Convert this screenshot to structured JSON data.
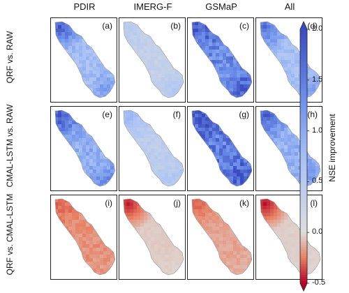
{
  "chart_data": {
    "type": "heatmap",
    "columns": [
      "PDIR",
      "IMERG-F",
      "GSMaP",
      "All"
    ],
    "rows": [
      "QRF vs. RAW",
      "CMAL-LSTM vs. RAW",
      "QRF vs. CMAL-LSTM"
    ],
    "panels": [
      {
        "label": "(a)",
        "row": 0,
        "col": 0,
        "mean": 0.75,
        "hotspot": 1.85,
        "south": 1.2
      },
      {
        "label": "(b)",
        "row": 0,
        "col": 1,
        "mean": 0.35,
        "hotspot": 0.5,
        "south": 0.6
      },
      {
        "label": "(c)",
        "row": 0,
        "col": 2,
        "mean": 1.35,
        "hotspot": 1.8,
        "south": 1.9
      },
      {
        "label": "(d)",
        "row": 0,
        "col": 3,
        "mean": 0.7,
        "hotspot": 1.6,
        "south": 1.1
      },
      {
        "label": "(e)",
        "row": 1,
        "col": 0,
        "mean": 0.95,
        "hotspot": 1.9,
        "south": 1.3
      },
      {
        "label": "(f)",
        "row": 1,
        "col": 1,
        "mean": 0.45,
        "hotspot": 0.8,
        "south": 0.6
      },
      {
        "label": "(g)",
        "row": 1,
        "col": 2,
        "mean": 1.5,
        "hotspot": 1.9,
        "south": 1.95
      },
      {
        "label": "(h)",
        "row": 1,
        "col": 3,
        "mean": 0.9,
        "hotspot": 1.8,
        "south": 1.2
      },
      {
        "label": "(i)",
        "row": 2,
        "col": 0,
        "mean": -0.2,
        "hotspot": -0.3,
        "south": -0.18
      },
      {
        "label": "(j)",
        "row": 2,
        "col": 1,
        "mean": -0.05,
        "hotspot": -0.45,
        "south": -0.03
      },
      {
        "label": "(k)",
        "row": 2,
        "col": 2,
        "mean": -0.15,
        "hotspot": -0.3,
        "south": -0.12
      },
      {
        "label": "(l)",
        "row": 2,
        "col": 3,
        "mean": -0.04,
        "hotspot": -0.48,
        "south": -0.03
      }
    ],
    "colorbar": {
      "label": "NSE improvement",
      "ticks": [
        "2.0",
        "1.5",
        "1.0",
        "0.5",
        "0.0",
        "-0.5"
      ],
      "tick_values": [
        2.0,
        1.5,
        1.0,
        0.5,
        0.0,
        -0.5
      ],
      "range": [
        -0.5,
        2.0
      ],
      "extend": "both",
      "cmap": "coolwarm_r"
    },
    "colors": {
      "positive": "#3a4cc0",
      "neutral": "#dddddd",
      "negative": "#b40426"
    }
  }
}
